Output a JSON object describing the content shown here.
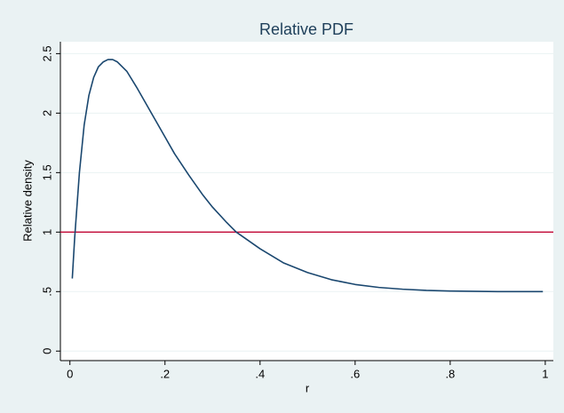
{
  "chart_data": {
    "type": "line",
    "title": "Relative PDF",
    "x_label": "r",
    "y_label": "Relative density",
    "x": [
      0.005,
      0.01,
      0.02,
      0.03,
      0.04,
      0.05,
      0.06,
      0.07,
      0.08,
      0.09,
      0.1,
      0.12,
      0.14,
      0.16,
      0.18,
      0.2,
      0.22,
      0.25,
      0.28,
      0.3,
      0.33,
      0.35,
      0.4,
      0.45,
      0.5,
      0.55,
      0.6,
      0.65,
      0.7,
      0.75,
      0.8,
      0.9,
      0.995
    ],
    "series": [
      {
        "color": "#1a476f",
        "values": [
          0.61,
          0.95,
          1.5,
          1.9,
          2.15,
          2.3,
          2.39,
          2.43,
          2.45,
          2.45,
          2.43,
          2.35,
          2.22,
          2.08,
          1.94,
          1.8,
          1.66,
          1.48,
          1.31,
          1.21,
          1.08,
          1.0,
          0.86,
          0.74,
          0.66,
          0.6,
          0.56,
          0.535,
          0.52,
          0.51,
          0.505,
          0.5,
          0.5
        ]
      }
    ],
    "reference_line": {
      "value": 1,
      "color": "#c10534"
    },
    "xlim": [
      -0.02,
      1.017
    ],
    "ylim": [
      -0.08,
      2.6
    ],
    "xticks": [
      0,
      {
        "value": 0.2,
        "label": ".2"
      },
      {
        "value": 0.4,
        "label": ".4"
      },
      {
        "value": 0.6,
        "label": ".6"
      },
      {
        "value": 0.8,
        "label": ".8"
      },
      1
    ],
    "yticks": [
      0,
      {
        "value": 0.5,
        "label": ".5"
      },
      1,
      1.5,
      2,
      2.5
    ],
    "grid": true
  }
}
